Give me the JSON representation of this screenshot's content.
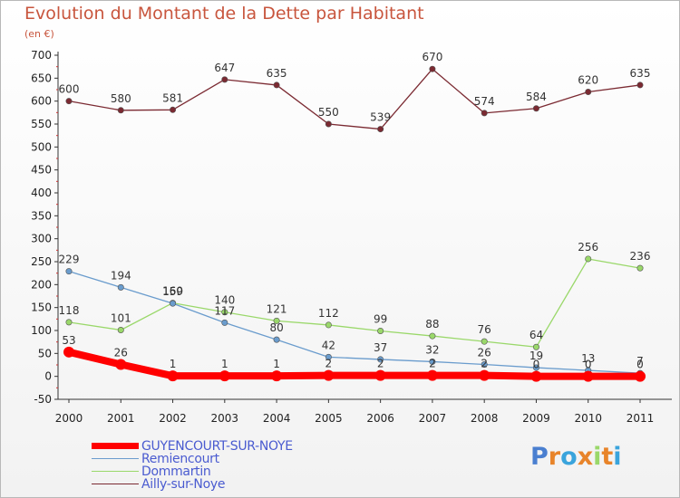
{
  "header": {
    "title": "Evolution du Montant de la Dette par Habitant",
    "subtitle": "(en €)"
  },
  "logo": {
    "text": "Proxiti"
  },
  "chart_data": {
    "type": "line",
    "title": "Evolution du Montant de la Dette par Habitant",
    "subtitle": "(en €)",
    "xlabel": "",
    "ylabel": "",
    "categories": [
      "2000",
      "2001",
      "2002",
      "2003",
      "2004",
      "2005",
      "2006",
      "2007",
      "2008",
      "2009",
      "2010",
      "2011"
    ],
    "ylim": [
      -50,
      700
    ],
    "yticks": [
      -50,
      0,
      50,
      100,
      150,
      200,
      250,
      300,
      350,
      400,
      450,
      500,
      550,
      600,
      650,
      700
    ],
    "grid": false,
    "legend_position": "bottom-left",
    "series": [
      {
        "name": "GUYENCOURT-SUR-NOYE",
        "color": "#ff0000",
        "values": [
          53,
          26,
          1,
          1,
          1,
          2,
          2,
          2,
          2,
          0,
          0,
          0
        ],
        "labels": [
          "53",
          "26",
          "1",
          "1",
          "1",
          "2",
          "2",
          "2",
          "2",
          "0",
          "0",
          "0"
        ]
      },
      {
        "name": "Remiencourt",
        "color": "#6a9ccd",
        "values": [
          229,
          194,
          159,
          117,
          80,
          42,
          37,
          32,
          26,
          19,
          13,
          7
        ],
        "labels": [
          "229",
          "194",
          "159",
          "117",
          "80",
          "42",
          "37",
          "32",
          "26",
          "19",
          "13",
          "7"
        ]
      },
      {
        "name": "Dommartin",
        "color": "#9ad86a",
        "values": [
          118,
          101,
          160,
          140,
          121,
          112,
          99,
          88,
          76,
          64,
          256,
          236
        ],
        "labels": [
          "118",
          "101",
          "160",
          "140",
          "121",
          "112",
          "99",
          "88",
          "76",
          "64",
          "256",
          "236"
        ]
      },
      {
        "name": "Ailly-sur-Noye",
        "color": "#7b2a32",
        "values": [
          600,
          580,
          581,
          647,
          635,
          550,
          539,
          670,
          574,
          584,
          620,
          635
        ],
        "labels": [
          "600",
          "580",
          "581",
          "647",
          "635",
          "550",
          "539",
          "670",
          "574",
          "584",
          "620",
          "635"
        ]
      }
    ]
  }
}
